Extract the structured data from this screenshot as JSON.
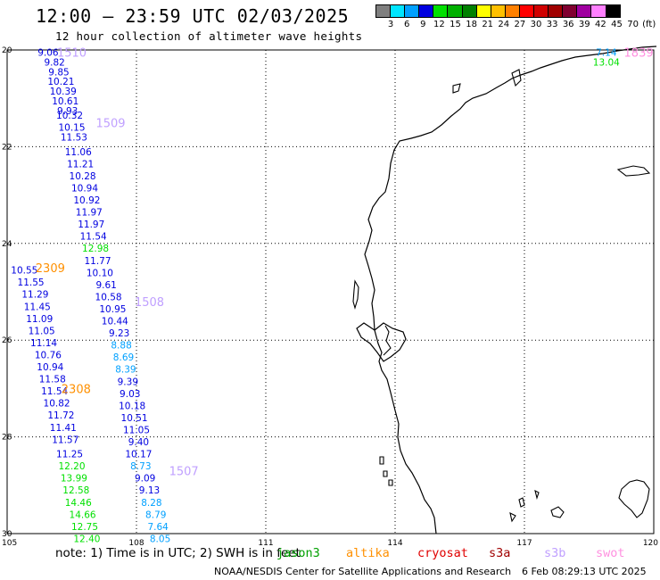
{
  "title": "12:00 – 23:59 UTC 02/03/2025",
  "subtitle": "12 hour collection of altimeter wave heights",
  "scale": {
    "labels": [
      "3",
      "6",
      "9",
      "12",
      "15",
      "18",
      "21",
      "24",
      "27",
      "30",
      "33",
      "36",
      "39",
      "42",
      "45",
      "70",
      "(ft)"
    ],
    "colors": [
      "#7f7f7f",
      "#00e5ff",
      "#00a0ff",
      "#0000e0",
      "#00e000",
      "#00b000",
      "#008000",
      "#ffff00",
      "#ffc000",
      "#ff8000",
      "#ff0000",
      "#d00000",
      "#a00000",
      "#800030",
      "#a000a0",
      "#ff80ff",
      "#000000"
    ]
  },
  "axes": {
    "x_ticks": [
      "105",
      "108",
      "111",
      "114",
      "117",
      "120"
    ],
    "y_ticks": [
      "20",
      "22",
      "24",
      "26",
      "28",
      "30"
    ],
    "lon_range": [
      105,
      120
    ],
    "lat_range": [
      -30,
      -20
    ]
  },
  "footer": {
    "note": "note: 1) Time is in UTC; 2) SWH is in feet",
    "legend": [
      {
        "name": "jason3",
        "color": "#00a000"
      },
      {
        "name": "altika",
        "color": "#ff9000"
      },
      {
        "name": "cryosat",
        "color": "#e00000"
      },
      {
        "name": "s3a",
        "color": "#a00000"
      },
      {
        "name": "s3b",
        "color": "#c0a0ff"
      },
      {
        "name": "swot",
        "color": "#ff90e0"
      }
    ],
    "credit": "NOAA/NESDIS Center for Satellite Applications and Research",
    "timestamp": "6 Feb 08:29:13 UTC 2025"
  },
  "pass_labels": [
    {
      "text": "1510",
      "lon": 106.5,
      "lat": -20.05,
      "color": "#c0a0ff"
    },
    {
      "text": "1509",
      "lon": 107.4,
      "lat": -21.5,
      "color": "#c0a0ff"
    },
    {
      "text": "2309",
      "lon": 106.0,
      "lat": -24.5,
      "color": "#ff9000"
    },
    {
      "text": "1508",
      "lon": 108.3,
      "lat": -25.2,
      "color": "#c0a0ff"
    },
    {
      "text": "2308",
      "lon": 106.6,
      "lat": -27.0,
      "color": "#ff9000"
    },
    {
      "text": "1507",
      "lon": 109.1,
      "lat": -28.7,
      "color": "#c0a0ff"
    },
    {
      "text": "1839",
      "lon": 119.65,
      "lat": -20.05,
      "color": "#ff90e0"
    }
  ],
  "readings": [
    {
      "v": "9.06",
      "lon": 105.95,
      "lat": -20.05,
      "c": "#0000e0"
    },
    {
      "v": "9.82",
      "lon": 106.1,
      "lat": -20.25,
      "c": "#0000e0"
    },
    {
      "v": "9.85",
      "lon": 106.2,
      "lat": -20.45,
      "c": "#0000e0"
    },
    {
      "v": "10.21",
      "lon": 106.25,
      "lat": -20.65,
      "c": "#0000e0"
    },
    {
      "v": "10.39",
      "lon": 106.3,
      "lat": -20.85,
      "c": "#0000e0"
    },
    {
      "v": "10.61",
      "lon": 106.35,
      "lat": -21.05,
      "c": "#0000e0"
    },
    {
      "v": "9.93",
      "lon": 106.4,
      "lat": -21.25,
      "c": "#0000e0"
    },
    {
      "v": "10.32",
      "lon": 106.45,
      "lat": -21.35,
      "c": "#0000e0"
    },
    {
      "v": "10.15",
      "lon": 106.5,
      "lat": -21.6,
      "c": "#0000e0"
    },
    {
      "v": "11.53",
      "lon": 106.55,
      "lat": -21.8,
      "c": "#0000e0"
    },
    {
      "v": "11.06",
      "lon": 106.65,
      "lat": -22.1,
      "c": "#0000e0"
    },
    {
      "v": "11.21",
      "lon": 106.7,
      "lat": -22.35,
      "c": "#0000e0"
    },
    {
      "v": "10.28",
      "lon": 106.75,
      "lat": -22.6,
      "c": "#0000e0"
    },
    {
      "v": "10.94",
      "lon": 106.8,
      "lat": -22.85,
      "c": "#0000e0"
    },
    {
      "v": "10.92",
      "lon": 106.85,
      "lat": -23.1,
      "c": "#0000e0"
    },
    {
      "v": "11.97",
      "lon": 106.9,
      "lat": -23.35,
      "c": "#0000e0"
    },
    {
      "v": "11.97",
      "lon": 106.95,
      "lat": -23.6,
      "c": "#0000e0"
    },
    {
      "v": "11.54",
      "lon": 107.0,
      "lat": -23.85,
      "c": "#0000e0"
    },
    {
      "v": "12.98",
      "lon": 107.05,
      "lat": -24.1,
      "c": "#00e000"
    },
    {
      "v": "11.77",
      "lon": 107.1,
      "lat": -24.35,
      "c": "#0000e0"
    },
    {
      "v": "10.10",
      "lon": 107.15,
      "lat": -24.6,
      "c": "#0000e0"
    },
    {
      "v": "9.61",
      "lon": 107.3,
      "lat": -24.85,
      "c": "#0000e0"
    },
    {
      "v": "10.58",
      "lon": 107.35,
      "lat": -25.1,
      "c": "#0000e0"
    },
    {
      "v": "10.95",
      "lon": 107.45,
      "lat": -25.35,
      "c": "#0000e0"
    },
    {
      "v": "10.44",
      "lon": 107.5,
      "lat": -25.6,
      "c": "#0000e0"
    },
    {
      "v": "9.23",
      "lon": 107.6,
      "lat": -25.85,
      "c": "#0000e0"
    },
    {
      "v": "8.88",
      "lon": 107.65,
      "lat": -26.1,
      "c": "#00a0ff"
    },
    {
      "v": "8.69",
      "lon": 107.7,
      "lat": -26.35,
      "c": "#00a0ff"
    },
    {
      "v": "8.39",
      "lon": 107.75,
      "lat": -26.6,
      "c": "#00a0ff"
    },
    {
      "v": "9.39",
      "lon": 107.8,
      "lat": -26.85,
      "c": "#0000e0"
    },
    {
      "v": "9.03",
      "lon": 107.85,
      "lat": -27.1,
      "c": "#0000e0"
    },
    {
      "v": "10.18",
      "lon": 107.9,
      "lat": -27.35,
      "c": "#0000e0"
    },
    {
      "v": "10.51",
      "lon": 107.95,
      "lat": -27.6,
      "c": "#0000e0"
    },
    {
      "v": "11.05",
      "lon": 108.0,
      "lat": -27.85,
      "c": "#0000e0"
    },
    {
      "v": "9.40",
      "lon": 108.05,
      "lat": -28.1,
      "c": "#0000e0"
    },
    {
      "v": "10.17",
      "lon": 108.05,
      "lat": -28.35,
      "c": "#0000e0"
    },
    {
      "v": "8.73",
      "lon": 108.1,
      "lat": -28.6,
      "c": "#00a0ff"
    },
    {
      "v": "9.09",
      "lon": 108.2,
      "lat": -28.85,
      "c": "#0000e0"
    },
    {
      "v": "9.13",
      "lon": 108.3,
      "lat": -29.1,
      "c": "#0000e0"
    },
    {
      "v": "8.28",
      "lon": 108.35,
      "lat": -29.35,
      "c": "#00a0ff"
    },
    {
      "v": "8.79",
      "lon": 108.45,
      "lat": -29.6,
      "c": "#00a0ff"
    },
    {
      "v": "7.64",
      "lon": 108.5,
      "lat": -29.85,
      "c": "#00a0ff"
    },
    {
      "v": "8.05",
      "lon": 108.55,
      "lat": -30.1,
      "c": "#00a0ff"
    },
    {
      "v": "10.55",
      "lon": 105.4,
      "lat": -24.55,
      "c": "#0000e0"
    },
    {
      "v": "11.55",
      "lon": 105.55,
      "lat": -24.8,
      "c": "#0000e0"
    },
    {
      "v": "11.29",
      "lon": 105.65,
      "lat": -25.05,
      "c": "#0000e0"
    },
    {
      "v": "11.45",
      "lon": 105.7,
      "lat": -25.3,
      "c": "#0000e0"
    },
    {
      "v": "11.09",
      "lon": 105.75,
      "lat": -25.55,
      "c": "#0000e0"
    },
    {
      "v": "11.05",
      "lon": 105.8,
      "lat": -25.8,
      "c": "#0000e0"
    },
    {
      "v": "11.14",
      "lon": 105.85,
      "lat": -26.05,
      "c": "#0000e0"
    },
    {
      "v": "10.76",
      "lon": 105.95,
      "lat": -26.3,
      "c": "#0000e0"
    },
    {
      "v": "10.94",
      "lon": 106.0,
      "lat": -26.55,
      "c": "#0000e0"
    },
    {
      "v": "11.58",
      "lon": 106.05,
      "lat": -26.8,
      "c": "#0000e0"
    },
    {
      "v": "11.54",
      "lon": 106.1,
      "lat": -27.05,
      "c": "#0000e0"
    },
    {
      "v": "10.82",
      "lon": 106.15,
      "lat": -27.3,
      "c": "#0000e0"
    },
    {
      "v": "11.72",
      "lon": 106.25,
      "lat": -27.55,
      "c": "#0000e0"
    },
    {
      "v": "11.41",
      "lon": 106.3,
      "lat": -27.8,
      "c": "#0000e0"
    },
    {
      "v": "11.57",
      "lon": 106.35,
      "lat": -28.05,
      "c": "#0000e0"
    },
    {
      "v": "11.25",
      "lon": 106.45,
      "lat": -28.35,
      "c": "#0000e0"
    },
    {
      "v": "12.20",
      "lon": 106.5,
      "lat": -28.6,
      "c": "#00e000"
    },
    {
      "v": "13.99",
      "lon": 106.55,
      "lat": -28.85,
      "c": "#00e000"
    },
    {
      "v": "12.58",
      "lon": 106.6,
      "lat": -29.1,
      "c": "#00e000"
    },
    {
      "v": "14.46",
      "lon": 106.65,
      "lat": -29.35,
      "c": "#00e000"
    },
    {
      "v": "14.66",
      "lon": 106.75,
      "lat": -29.6,
      "c": "#00e000"
    },
    {
      "v": "12.75",
      "lon": 106.8,
      "lat": -29.85,
      "c": "#00e000"
    },
    {
      "v": "12.40",
      "lon": 106.85,
      "lat": -30.1,
      "c": "#00e000"
    },
    {
      "v": "7.14",
      "lon": 118.9,
      "lat": -20.05,
      "c": "#00a0ff"
    },
    {
      "v": "13.04",
      "lon": 118.9,
      "lat": -20.25,
      "c": "#00e000"
    }
  ]
}
